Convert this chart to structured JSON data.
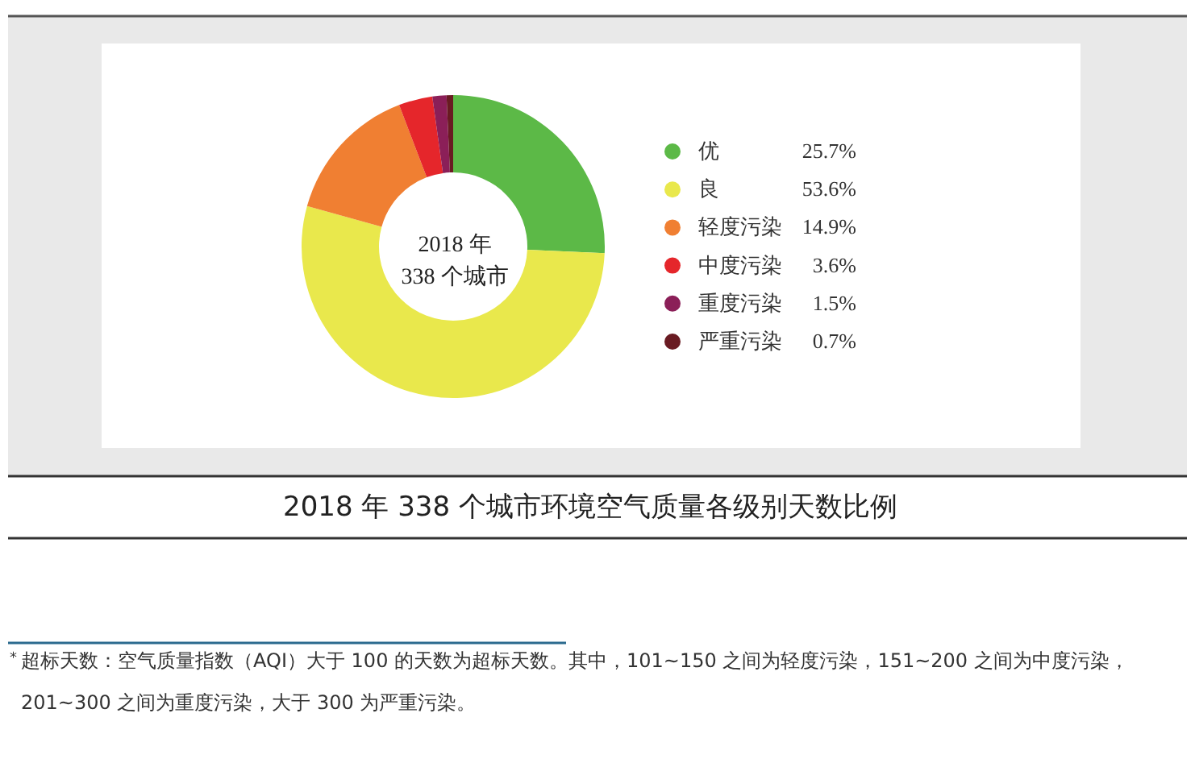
{
  "chart_data": {
    "type": "donut",
    "title": "2018 年 338 个城市环境空气质量各级别天数比例",
    "categories": [
      "优",
      "良",
      "轻度污染",
      "中度污染",
      "重度污染",
      "严重污染"
    ],
    "values": [
      25.7,
      53.6,
      14.9,
      3.6,
      1.5,
      0.7
    ],
    "colors": [
      "#5cb947",
      "#e9e84c",
      "#f07f32",
      "#e5262b",
      "#8b1f58",
      "#691b22"
    ],
    "value_labels": [
      "25.7%",
      "53.6%",
      "14.9%",
      "3.6%",
      "1.5%",
      "0.7%"
    ],
    "legend": "right",
    "annotations": [
      "2018 年\n338 个城市",
      "$^{*}$超标天数：空气质量指数（AQI）大于 100 的天数为超标天数。其中，101~150 之间为轻度污染，151~200 之间为中度污染，201~300 之间为重度污染，大于 300 为严重污染。"
    ]
  }
}
